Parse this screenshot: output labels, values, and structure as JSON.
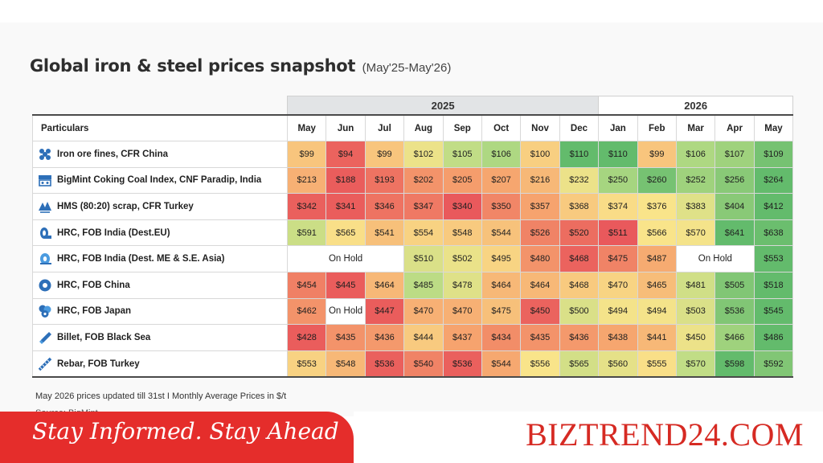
{
  "title": "Global iron & steel prices snapshot",
  "subtitle": "(May'25-May'26)",
  "footnote": "May 2026 prices updated till 31st  I  Monthly Average Prices in $/t",
  "source": "Source: BigMint",
  "banner": {
    "tagline": "Stay Informed. Stay Ahead",
    "brand": "BIZTREND24.COM"
  },
  "chart_data": {
    "type": "table",
    "year_groups": [
      {
        "label": "2025",
        "span": 8
      },
      {
        "label": "2026",
        "span": 5
      }
    ],
    "header_label": "Particulars",
    "months": [
      "May",
      "Jun",
      "Jul",
      "Aug",
      "Sep",
      "Oct",
      "Nov",
      "Dec",
      "Jan",
      "Feb",
      "Mar",
      "Apr",
      "May"
    ],
    "hold_text": "On Hold",
    "colors": {
      "low": "#e8535a",
      "mid_low": "#f6a36e",
      "mid": "#f9e48a",
      "mid_high": "#b9dc85",
      "high": "#5cb86a",
      "hold": "#ffffff"
    },
    "rows": [
      {
        "name": "Iron ore fines, CFR China",
        "icon": "iron-ore-icon",
        "values": [
          "$99",
          "$94",
          "$99",
          "$102",
          "$105",
          "$106",
          "$100",
          "$110",
          "$110",
          "$99",
          "$106",
          "$107",
          "$109"
        ],
        "levels": [
          0.38,
          0.05,
          0.38,
          0.55,
          0.72,
          0.78,
          0.42,
          0.98,
          0.98,
          0.38,
          0.78,
          0.82,
          0.93
        ]
      },
      {
        "name": "BigMint Coking Coal Index, CNF Paradip, India",
        "icon": "coking-coal-icon",
        "values": [
          "$213",
          "$188",
          "$193",
          "$202",
          "$205",
          "$207",
          "$216",
          "$232",
          "$250",
          "$260",
          "$252",
          "$256",
          "$264"
        ],
        "levels": [
          0.3,
          0.03,
          0.1,
          0.2,
          0.23,
          0.26,
          0.33,
          0.55,
          0.8,
          0.93,
          0.82,
          0.88,
          0.98
        ]
      },
      {
        "name": "HMS (80:20) scrap, CFR Turkey",
        "icon": "scrap-icon",
        "values": [
          "$342",
          "$341",
          "$346",
          "$347",
          "$340",
          "$350",
          "$357",
          "$368",
          "$374",
          "$376",
          "$383",
          "$404",
          "$412"
        ],
        "levels": [
          0.04,
          0.03,
          0.1,
          0.12,
          0.02,
          0.16,
          0.25,
          0.4,
          0.47,
          0.5,
          0.6,
          0.88,
          0.98
        ]
      },
      {
        "name": "HRC, FOB India (Dest.EU)",
        "icon": "hrc-coil-icon",
        "values": [
          "$591",
          "$565",
          "$541",
          "$554",
          "$548",
          "$544",
          "$526",
          "$520",
          "$511",
          "$566",
          "$570",
          "$641",
          "$638"
        ],
        "levels": [
          0.68,
          0.48,
          0.36,
          0.43,
          0.4,
          0.37,
          0.15,
          0.08,
          0.02,
          0.5,
          0.52,
          0.98,
          0.96
        ]
      },
      {
        "name": "HRC, FOB India (Dest. ME & S.E. Asia)",
        "icon": "hrc-coil-blue-icon",
        "values": [
          "",
          "",
          "",
          "$510",
          "$502",
          "$495",
          "$480",
          "$468",
          "$475",
          "$487",
          "",
          "",
          "$553"
        ],
        "levels": [
          null,
          null,
          null,
          0.62,
          0.56,
          0.44,
          0.2,
          0.05,
          0.15,
          0.28,
          null,
          null,
          0.98
        ],
        "holds": [
          {
            "start": 0,
            "span": 3
          },
          {
            "start": 10,
            "span": 2
          }
        ]
      },
      {
        "name": "HRC, FOB China",
        "icon": "hrc-china-icon",
        "values": [
          "$454",
          "$445",
          "$464",
          "$485",
          "$478",
          "$464",
          "$464",
          "$468",
          "$470",
          "$465",
          "$481",
          "$505",
          "$518"
        ],
        "levels": [
          0.14,
          0.03,
          0.33,
          0.74,
          0.6,
          0.33,
          0.33,
          0.4,
          0.44,
          0.35,
          0.66,
          0.9,
          0.98
        ]
      },
      {
        "name": "HRC, FOB Japan",
        "icon": "hrc-japan-icon",
        "values": [
          "$462",
          "",
          "$447",
          "$470",
          "$470",
          "$475",
          "$450",
          "$500",
          "$494",
          "$494",
          "$503",
          "$536",
          "$545"
        ],
        "levels": [
          0.2,
          null,
          0.03,
          0.3,
          0.3,
          0.36,
          0.05,
          0.62,
          0.52,
          0.52,
          0.62,
          0.9,
          0.98
        ],
        "holds": [
          {
            "start": 1,
            "span": 1
          }
        ]
      },
      {
        "name": "Billet, FOB Black Sea",
        "icon": "billet-icon",
        "values": [
          "$428",
          "$435",
          "$436",
          "$444",
          "$437",
          "$434",
          "$435",
          "$436",
          "$438",
          "$441",
          "$450",
          "$466",
          "$486"
        ],
        "levels": [
          0.03,
          0.2,
          0.22,
          0.4,
          0.25,
          0.18,
          0.2,
          0.22,
          0.26,
          0.33,
          0.55,
          0.82,
          0.98
        ]
      },
      {
        "name": "Rebar, FOB Turkey",
        "icon": "rebar-icon",
        "values": [
          "$553",
          "$548",
          "$536",
          "$540",
          "$536",
          "$544",
          "$556",
          "$565",
          "$560",
          "$555",
          "$570",
          "$598",
          "$592"
        ],
        "levels": [
          0.43,
          0.33,
          0.04,
          0.15,
          0.04,
          0.27,
          0.5,
          0.65,
          0.58,
          0.48,
          0.72,
          0.98,
          0.9
        ]
      }
    ]
  }
}
